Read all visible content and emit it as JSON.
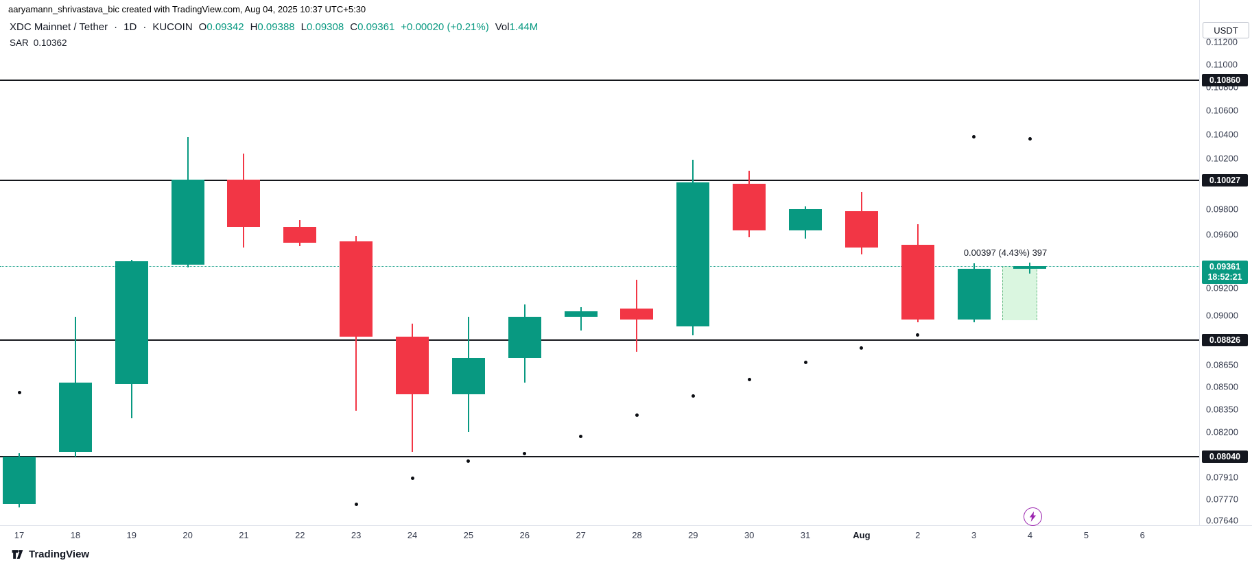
{
  "attribution": "aaryamann_shrivastava_bic created with TradingView.com, Aug 04, 2025 10:37 UTC+5:30",
  "header": {
    "symbol": "XDC Mainnet / Tether",
    "separator": "·",
    "interval": "1D",
    "exchange": "KUCOIN",
    "ohlc": [
      {
        "label": "O",
        "value": "0.09342"
      },
      {
        "label": "H",
        "value": "0.09388"
      },
      {
        "label": "L",
        "value": "0.09308"
      },
      {
        "label": "C",
        "value": "0.09361"
      }
    ],
    "change": "+0.00020 (+0.21%)",
    "volume_label": "Vol",
    "volume_value": "1.44M",
    "indicator": {
      "name": "SAR",
      "value": "0.10362"
    }
  },
  "axis": {
    "currency": "USDT",
    "ticks": [
      "0.11200",
      "0.11000",
      "0.10800",
      "0.10600",
      "0.10400",
      "0.10200",
      "0.09800",
      "0.09600",
      "0.09200",
      "0.09000",
      "0.08650",
      "0.08500",
      "0.08350",
      "0.08200",
      "0.07910",
      "0.07770",
      "0.07640"
    ],
    "current": {
      "price": "0.09361",
      "countdown": "18:52:21"
    }
  },
  "footer": {
    "brand": "TradingView"
  },
  "colors": {
    "candle_up": "#089981",
    "candle_down": "#F23645",
    "current_price_badge": "#089981",
    "level_line": "#15171c",
    "sar_dot": "#0c0e13",
    "lightning": "#9C27B0"
  },
  "chart_data": {
    "type": "candlestick",
    "title": "XDC Mainnet / Tether · 1D · KUCOIN",
    "x_labels": [
      "17",
      "18",
      "19",
      "20",
      "21",
      "22",
      "23",
      "24",
      "25",
      "26",
      "27",
      "28",
      "29",
      "30",
      "31",
      "Aug",
      "2",
      "3",
      "4",
      "5",
      "6"
    ],
    "candles": [
      {
        "date": "Jul 17",
        "open": 0.0774,
        "high": 0.0806,
        "low": 0.0772,
        "close": 0.0804
      },
      {
        "date": "Jul 18",
        "open": 0.0807,
        "high": 0.0899,
        "low": 0.0804,
        "close": 0.0853
      },
      {
        "date": "Jul 19",
        "open": 0.0852,
        "high": 0.0941,
        "low": 0.0829,
        "close": 0.094
      },
      {
        "date": "Jul 20",
        "open": 0.0937,
        "high": 0.1038,
        "low": 0.0935,
        "close": 0.1003
      },
      {
        "date": "Jul 21",
        "open": 0.1003,
        "high": 0.1024,
        "low": 0.095,
        "close": 0.0966
      },
      {
        "date": "Jul 22",
        "open": 0.0966,
        "high": 0.0971,
        "low": 0.0951,
        "close": 0.0954
      },
      {
        "date": "Jul 23",
        "open": 0.0955,
        "high": 0.0959,
        "low": 0.0834,
        "close": 0.0885
      },
      {
        "date": "Jul 24",
        "open": 0.0885,
        "high": 0.0894,
        "low": 0.0807,
        "close": 0.0845
      },
      {
        "date": "Jul 25",
        "open": 0.0845,
        "high": 0.0899,
        "low": 0.082,
        "close": 0.087
      },
      {
        "date": "Jul 26",
        "open": 0.087,
        "high": 0.0908,
        "low": 0.0853,
        "close": 0.0899
      },
      {
        "date": "Jul 27",
        "open": 0.0899,
        "high": 0.0906,
        "low": 0.0889,
        "close": 0.0903
      },
      {
        "date": "Jul 28",
        "open": 0.0905,
        "high": 0.0926,
        "low": 0.0874,
        "close": 0.0897
      },
      {
        "date": "Jul 29",
        "open": 0.0892,
        "high": 0.1019,
        "low": 0.0886,
        "close": 0.1001
      },
      {
        "date": "Jul 30",
        "open": 0.1,
        "high": 0.101,
        "low": 0.0958,
        "close": 0.0963
      },
      {
        "date": "Jul 31",
        "open": 0.0963,
        "high": 0.0982,
        "low": 0.0957,
        "close": 0.098
      },
      {
        "date": "Aug 1",
        "open": 0.0978,
        "high": 0.0993,
        "low": 0.0945,
        "close": 0.095
      },
      {
        "date": "Aug 2",
        "open": 0.0952,
        "high": 0.0968,
        "low": 0.0895,
        "close": 0.0897
      },
      {
        "date": "Aug 3",
        "open": 0.0897,
        "high": 0.0938,
        "low": 0.0895,
        "close": 0.0934
      },
      {
        "date": "Aug 4",
        "open": 0.09342,
        "high": 0.09388,
        "low": 0.09308,
        "close": 0.09361
      }
    ],
    "sar_dots": [
      {
        "index": 0,
        "value": 0.0846
      },
      {
        "index": 6,
        "value": 0.0774
      },
      {
        "index": 7,
        "value": 0.079
      },
      {
        "index": 8,
        "value": 0.0801
      },
      {
        "index": 9,
        "value": 0.0806
      },
      {
        "index": 10,
        "value": 0.0817
      },
      {
        "index": 11,
        "value": 0.0831
      },
      {
        "index": 12,
        "value": 0.0844
      },
      {
        "index": 13,
        "value": 0.0855
      },
      {
        "index": 14,
        "value": 0.0867
      },
      {
        "index": 15,
        "value": 0.0877
      },
      {
        "index": 16,
        "value": 0.0886
      },
      {
        "index": 17,
        "value": 0.1038
      },
      {
        "index": 18,
        "value": 0.10362
      }
    ],
    "horizontal_lines": [
      0.1086,
      0.10027,
      0.08826,
      0.0804
    ],
    "current_price": 0.09361,
    "measurement": {
      "label": "0.00397 (4.43%) 397",
      "delta": "0.00397",
      "percent": "4.43%",
      "bars": "397",
      "from": 0.08965,
      "to": 0.09362,
      "start_index": 17.5,
      "end_index": 18.1
    },
    "y_axis": {
      "scale": "log",
      "top_price": 0.11579,
      "bottom_price": 0.07373,
      "unit": "USDT"
    },
    "legend_values": {
      "O": 0.09342,
      "H": 0.09388,
      "L": 0.09308,
      "C": 0.09361,
      "volume": "1.44M",
      "sar": 0.10362
    }
  }
}
